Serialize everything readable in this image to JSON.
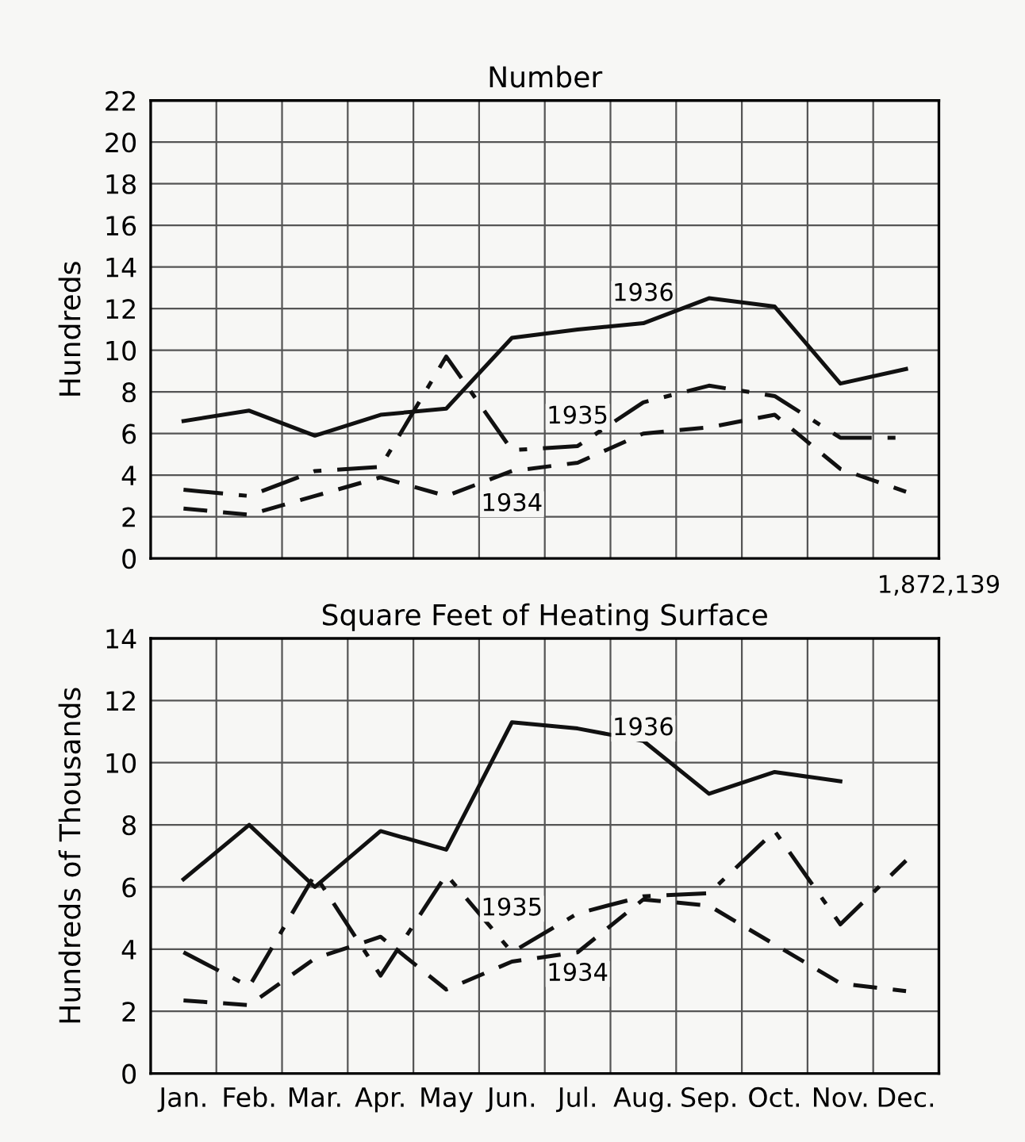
{
  "chart_data": [
    {
      "type": "line",
      "title": "Number",
      "ylabel": "Hundreds",
      "ylim": [
        0,
        22
      ],
      "yticks": [
        0,
        2,
        4,
        6,
        8,
        10,
        12,
        14,
        16,
        18,
        20,
        22
      ],
      "categories": [
        "Jan.",
        "Feb.",
        "Mar.",
        "Apr.",
        "May",
        "Jun.",
        "Jul.",
        "Aug.",
        "Sep.",
        "Oct.",
        "Nov.",
        "Dec."
      ],
      "tick_labels": "y",
      "grid": true,
      "series": [
        {
          "color": "#111111",
          "line_style": "solid",
          "values": [
            6.6,
            7.1,
            5.9,
            6.9,
            7.2,
            10.6,
            11.0,
            11.3,
            12.5,
            12.1,
            8.4,
            9.1
          ]
        },
        {
          "color": "#111111",
          "line_style": "dashdot",
          "values": [
            3.3,
            3.0,
            4.2,
            4.4,
            9.7,
            5.2,
            5.4,
            7.5,
            8.3,
            7.8,
            5.8,
            5.8
          ]
        },
        {
          "color": "#111111",
          "line_style": "dashed",
          "values": [
            2.4,
            2.1,
            3.0,
            3.9,
            3.0,
            4.2,
            4.6,
            6.0,
            6.3,
            6.9,
            4.3,
            3.2
          ]
        }
      ],
      "annotations": [
        {
          "text": "1936",
          "x": "Aug.",
          "y": 12.7
        },
        {
          "text": "1935",
          "x": "Jul.",
          "y": 6.8
        },
        {
          "text": "1934",
          "x": "Jun.",
          "y": 2.6
        }
      ]
    },
    {
      "type": "line",
      "title": "Square Feet of Heating Surface",
      "ylabel": "Hundreds of Thousands",
      "ylim": [
        0,
        14
      ],
      "yticks": [
        0,
        2,
        4,
        6,
        8,
        10,
        12,
        14
      ],
      "categories": [
        "Jan.",
        "Feb.",
        "Mar.",
        "Apr.",
        "May",
        "Jun.",
        "Jul.",
        "Aug.",
        "Sep.",
        "Oct.",
        "Nov.",
        "Dec."
      ],
      "grid": true,
      "series": [
        {
          "color": "#111111",
          "line_style": "solid",
          "values": [
            6.25,
            8.0,
            6.0,
            7.8,
            7.2,
            11.3,
            11.1,
            10.7,
            9.0,
            9.7,
            9.4,
            null
          ]
        },
        {
          "color": "#111111",
          "line_style": "dashdot",
          "values": [
            3.9,
            2.8,
            6.4,
            3.15,
            6.4,
            3.9,
            5.15,
            5.7,
            5.8,
            7.8,
            4.8,
            6.85
          ]
        },
        {
          "color": "#111111",
          "line_style": "dashed",
          "values": [
            2.35,
            2.2,
            3.7,
            4.4,
            2.7,
            3.6,
            3.9,
            5.6,
            5.4,
            4.15,
            2.9,
            2.65
          ]
        }
      ],
      "annotations": [
        {
          "text": "1936",
          "x": "Aug.",
          "y": 11.1
        },
        {
          "text": "1935",
          "x": "Jun.",
          "y": 5.3
        },
        {
          "text": "1934",
          "x": "Jul.",
          "y": 3.2
        },
        "1,872,139"
      ]
    }
  ]
}
